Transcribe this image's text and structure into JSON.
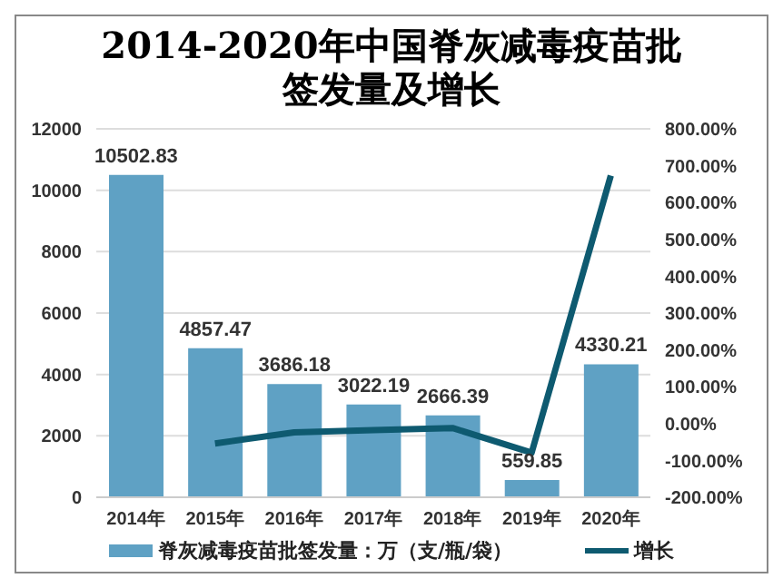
{
  "chart_data": {
    "type": "bar",
    "title": "2014-2020年中国脊灰减毒疫苗批签发量及增长",
    "categories": [
      "2014年",
      "2015年",
      "2016年",
      "2017年",
      "2018年",
      "2019年",
      "2020年"
    ],
    "series": [
      {
        "name": "脊灰减毒疫苗批签发量：万（支/瓶/袋）",
        "color": "#5fa1c4",
        "values": [
          10502.83,
          4857.47,
          3686.18,
          3022.19,
          2666.39,
          559.85,
          4330.21
        ],
        "value_labels": [
          "10502.83",
          "4857.47",
          "3686.18",
          "3022.19",
          "2666.39",
          "559.85",
          "4330.21"
        ]
      },
      {
        "name": "增长",
        "type": "line",
        "axis": "y2",
        "color": "#0e5a70",
        "values": [
          null,
          -54,
          -24,
          -18,
          -12,
          -79,
          673
        ]
      }
    ],
    "ylim": [
      0,
      12000
    ],
    "yticks": [
      0,
      2000,
      4000,
      6000,
      8000,
      10000,
      12000
    ],
    "y2lim": [
      -200,
      800
    ],
    "y2ticks": [
      {
        "value": -200,
        "label": "-200.00%"
      },
      {
        "value": -100,
        "label": "-100.00%"
      },
      {
        "value": 0,
        "label": "0.00%"
      },
      {
        "value": 100,
        "label": "100.00%"
      },
      {
        "value": 200,
        "label": "200.00%"
      },
      {
        "value": 300,
        "label": "300.00%"
      },
      {
        "value": 400,
        "label": "400.00%"
      },
      {
        "value": 500,
        "label": "500.00%"
      },
      {
        "value": 600,
        "label": "600.00%"
      },
      {
        "value": 700,
        "label": "700.00%"
      },
      {
        "value": 800,
        "label": "800.00%"
      }
    ],
    "grid": "y",
    "legend": "bottom",
    "marker": "none",
    "line_style": "solid"
  }
}
